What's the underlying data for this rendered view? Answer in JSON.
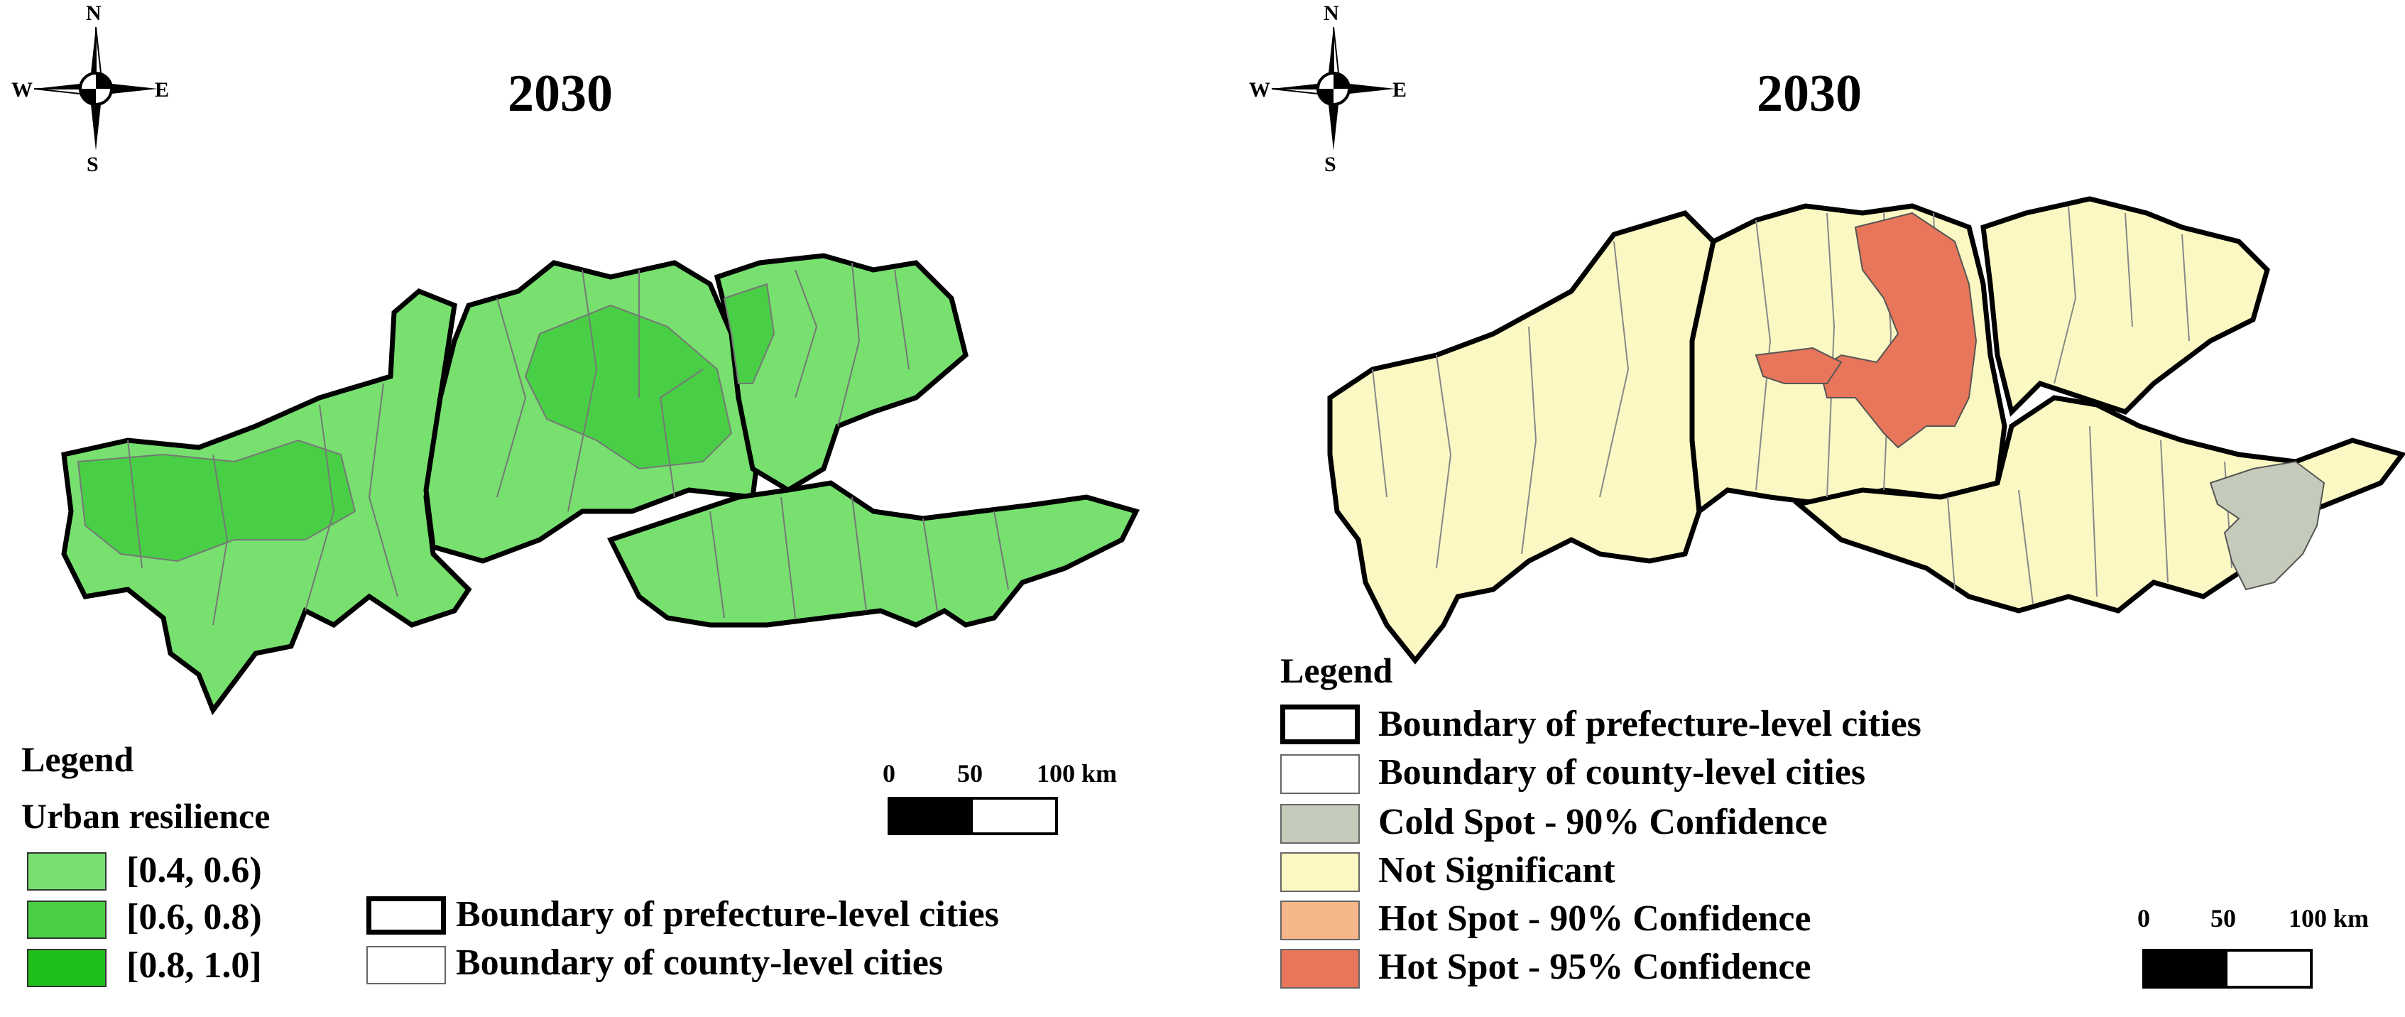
{
  "panels": [
    {
      "title": "2030",
      "compass": {
        "north": "N",
        "south": "S",
        "east": "E",
        "west": "W"
      },
      "legend": {
        "title": "Legend",
        "subtitle": "Urban resilience",
        "classes": [
          {
            "label": "[0.4, 0.6)",
            "color": "#77e06f"
          },
          {
            "label": "[0.6, 0.8)",
            "color": "#48cf45"
          },
          {
            "label": "[0.8, 1.0]",
            "color": "#1fbf1a"
          }
        ],
        "boundaries": [
          {
            "label": "Boundary of prefecture-level cities"
          },
          {
            "label": "Boundary of county-level cities"
          }
        ]
      },
      "scale": {
        "ticks": [
          "0",
          "50",
          "100 km"
        ]
      }
    },
    {
      "title": "2030",
      "compass": {
        "north": "N",
        "south": "S",
        "east": "E",
        "west": "W"
      },
      "legend": {
        "title": "Legend",
        "items": [
          {
            "label": "Boundary of prefecture-level cities",
            "color": "#ffffff"
          },
          {
            "label": "Boundary of county-level cities",
            "color": "#ffffff"
          },
          {
            "label": "Cold Spot - 90% Confidence",
            "color": "#c5cbbb"
          },
          {
            "label": "Not Significant",
            "color": "#fbf8c3"
          },
          {
            "label": "Hot Spot - 90% Confidence",
            "color": "#f5b689"
          },
          {
            "label": "Hot Spot - 95% Confidence",
            "color": "#e8765a"
          }
        ]
      },
      "scale": {
        "ticks": [
          "0",
          "50",
          "100 km"
        ]
      }
    }
  ]
}
